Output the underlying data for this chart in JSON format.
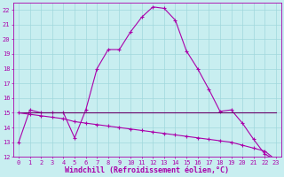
{
  "title": "",
  "xlabel": "Windchill (Refroidissement éolien,°C)",
  "background_color": "#c8eef0",
  "grid_color": "#a0d8dc",
  "line_color": "#aa00aa",
  "line_color2": "#660066",
  "xlim": [
    -0.5,
    23.5
  ],
  "ylim": [
    12,
    22.5
  ],
  "x_ticks": [
    0,
    1,
    2,
    3,
    4,
    5,
    6,
    7,
    8,
    9,
    10,
    11,
    12,
    13,
    14,
    15,
    16,
    17,
    18,
    19,
    20,
    21,
    22,
    23
  ],
  "y_ticks": [
    12,
    13,
    14,
    15,
    16,
    17,
    18,
    19,
    20,
    21,
    22
  ],
  "curve1_x": [
    0,
    1,
    2,
    3,
    4,
    5,
    6,
    7,
    8,
    9,
    10,
    11,
    12,
    13,
    14,
    15,
    16,
    17,
    18,
    19,
    20,
    21,
    22,
    23
  ],
  "curve1_y": [
    13.0,
    15.2,
    15.0,
    15.0,
    15.0,
    13.3,
    15.2,
    18.0,
    19.3,
    19.3,
    20.5,
    21.5,
    22.2,
    22.1,
    21.3,
    19.2,
    18.0,
    16.6,
    15.1,
    15.2,
    14.3,
    13.2,
    12.2,
    11.8
  ],
  "curve2_x": [
    0,
    23
  ],
  "curve2_y": [
    15.0,
    15.0
  ],
  "curve3_x": [
    0,
    1,
    2,
    3,
    4,
    5,
    6,
    7,
    8,
    9,
    10,
    11,
    12,
    13,
    14,
    15,
    16,
    17,
    18,
    19,
    20,
    21,
    22,
    23
  ],
  "curve3_y": [
    15.0,
    14.9,
    14.8,
    14.7,
    14.6,
    14.4,
    14.3,
    14.2,
    14.1,
    14.0,
    13.9,
    13.8,
    13.7,
    13.6,
    13.5,
    13.4,
    13.3,
    13.2,
    13.1,
    13.0,
    12.8,
    12.6,
    12.4,
    11.8
  ],
  "tick_fontsize": 5.0,
  "label_fontsize": 6.0
}
